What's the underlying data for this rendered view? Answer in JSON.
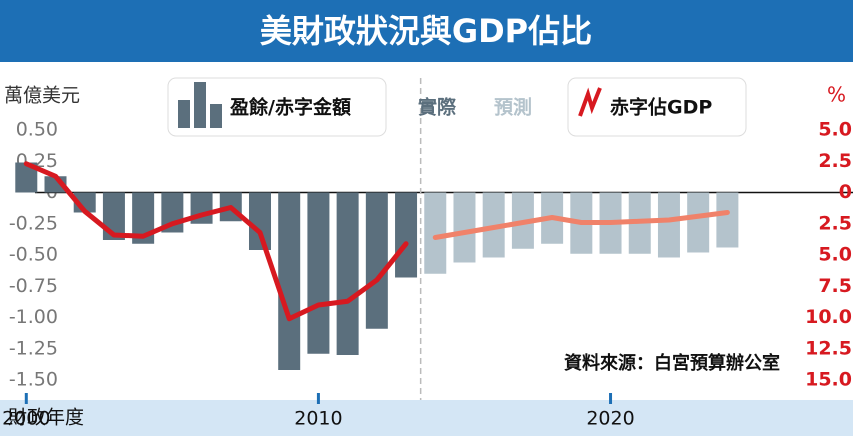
{
  "chart_data": {
    "type": "bar-line",
    "title": "美財政狀況與GDP佔比",
    "y_label": "萬億美元",
    "y2_label": "%",
    "x_label": "財政年度",
    "actual_label": "實際",
    "forecast_label": "預測",
    "source": "資料來源：白宮預算辦公室",
    "forecast_start": 2014,
    "x": [
      2000,
      2001,
      2002,
      2003,
      2004,
      2005,
      2006,
      2007,
      2008,
      2009,
      2010,
      2011,
      2012,
      2013,
      2014,
      2015,
      2016,
      2017,
      2018,
      2019,
      2020,
      2021,
      2022,
      2023,
      2024
    ],
    "xlim": [
      1999.1,
      2028.3
    ],
    "xticks": [
      2000,
      2010,
      2020
    ],
    "ylim": [
      -1.62,
      0.62
    ],
    "yticks": [
      {
        "value": 0.5,
        "label": "0.50"
      },
      {
        "value": 0.25,
        "label": "0.25"
      },
      0,
      {
        "value": -0.25,
        "label": "-0.25"
      },
      {
        "value": -0.5,
        "label": "-0.50"
      },
      {
        "value": -0.75,
        "label": "-0.75"
      },
      {
        "value": -1,
        "label": "-1.00"
      },
      {
        "value": -1.25,
        "label": "-1.25"
      },
      {
        "value": -1.5,
        "label": "-1.50"
      }
    ],
    "y2lim": [
      -16.2,
      6.2
    ],
    "y2ticks": [
      {
        "value": 5,
        "label": "5.0"
      },
      {
        "value": 2.5,
        "label": "2.5"
      },
      0,
      {
        "value": -2.5,
        "label": "2.5"
      },
      {
        "value": -5,
        "label": "5.0"
      },
      {
        "value": -7.5,
        "label": "7.5"
      },
      {
        "value": -10,
        "label": "10.0"
      },
      {
        "value": -12.5,
        "label": "12.5"
      },
      {
        "value": -15,
        "label": "15.0"
      }
    ],
    "series": [
      {
        "name": "盈餘/赤字金額",
        "type": "bar",
        "color": "#5b6f7d",
        "forecast_color": "#b4c3cc",
        "values": [
          0.24,
          0.13,
          -0.16,
          -0.38,
          -0.41,
          -0.32,
          -0.25,
          -0.23,
          -0.46,
          -1.42,
          -1.29,
          -1.3,
          -1.09,
          -0.68,
          -0.65,
          -0.56,
          -0.52,
          -0.45,
          -0.41,
          -0.49,
          -0.49,
          -0.49,
          -0.52,
          -0.48,
          -0.44
        ]
      },
      {
        "name": "赤字佔GDP",
        "type": "line",
        "axis": "y2",
        "color": "#d71920",
        "forecast_color": "#f0826a",
        "values": [
          2.3,
          1.3,
          -1.5,
          -3.4,
          -3.5,
          -2.5,
          -1.8,
          -1.2,
          -3.2,
          -10.1,
          -9.0,
          -8.7,
          -7.0,
          -4.1,
          -3.6,
          -3.2,
          -2.8,
          -2.4,
          -2.0,
          -2.4,
          -2.4,
          -2.3,
          -2.2,
          -1.9,
          -1.6
        ]
      }
    ]
  }
}
